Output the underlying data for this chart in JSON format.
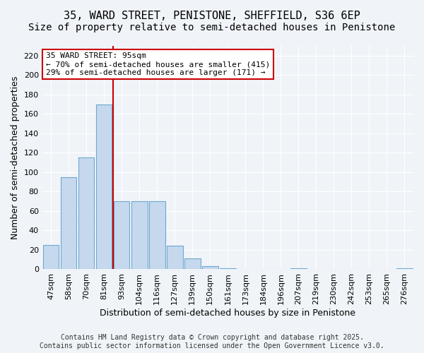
{
  "title_line1": "35, WARD STREET, PENISTONE, SHEFFIELD, S36 6EP",
  "title_line2": "Size of property relative to semi-detached houses in Penistone",
  "xlabel": "Distribution of semi-detached houses by size in Penistone",
  "ylabel": "Number of semi-detached properties",
  "bar_color": "#c5d8ed",
  "bar_edge_color": "#6ea8d0",
  "highlight_color": "#c5d8ed",
  "vline_color": "#cc0000",
  "annotation_box_color": "#cc0000",
  "categories": [
    "47sqm",
    "58sqm",
    "70sqm",
    "81sqm",
    "93sqm",
    "104sqm",
    "116sqm",
    "127sqm",
    "139sqm",
    "150sqm",
    "161sqm",
    "173sqm",
    "184sqm",
    "196sqm",
    "207sqm",
    "219sqm",
    "230sqm",
    "242sqm",
    "253sqm",
    "265sqm",
    "276sqm"
  ],
  "values": [
    25,
    95,
    115,
    170,
    70,
    70,
    70,
    24,
    11,
    3,
    1,
    0,
    0,
    0,
    1,
    0,
    0,
    0,
    0,
    0,
    1
  ],
  "property_size": 95,
  "property_label": "35 WARD STREET: 95sqm",
  "pct_smaller": 70,
  "n_smaller": 415,
  "pct_larger": 29,
  "n_larger": 171,
  "vline_position": 4,
  "ylim": [
    0,
    230
  ],
  "yticks": [
    0,
    20,
    40,
    60,
    80,
    100,
    120,
    140,
    160,
    180,
    200,
    220
  ],
  "background_color": "#f0f4f8",
  "plot_bg_color": "#f0f4f8",
  "grid_color": "#ffffff",
  "footer": "Contains HM Land Registry data © Crown copyright and database right 2025.\nContains public sector information licensed under the Open Government Licence v3.0.",
  "title_fontsize": 11,
  "subtitle_fontsize": 10,
  "axis_label_fontsize": 9,
  "tick_fontsize": 8,
  "annotation_fontsize": 8,
  "footer_fontsize": 7
}
